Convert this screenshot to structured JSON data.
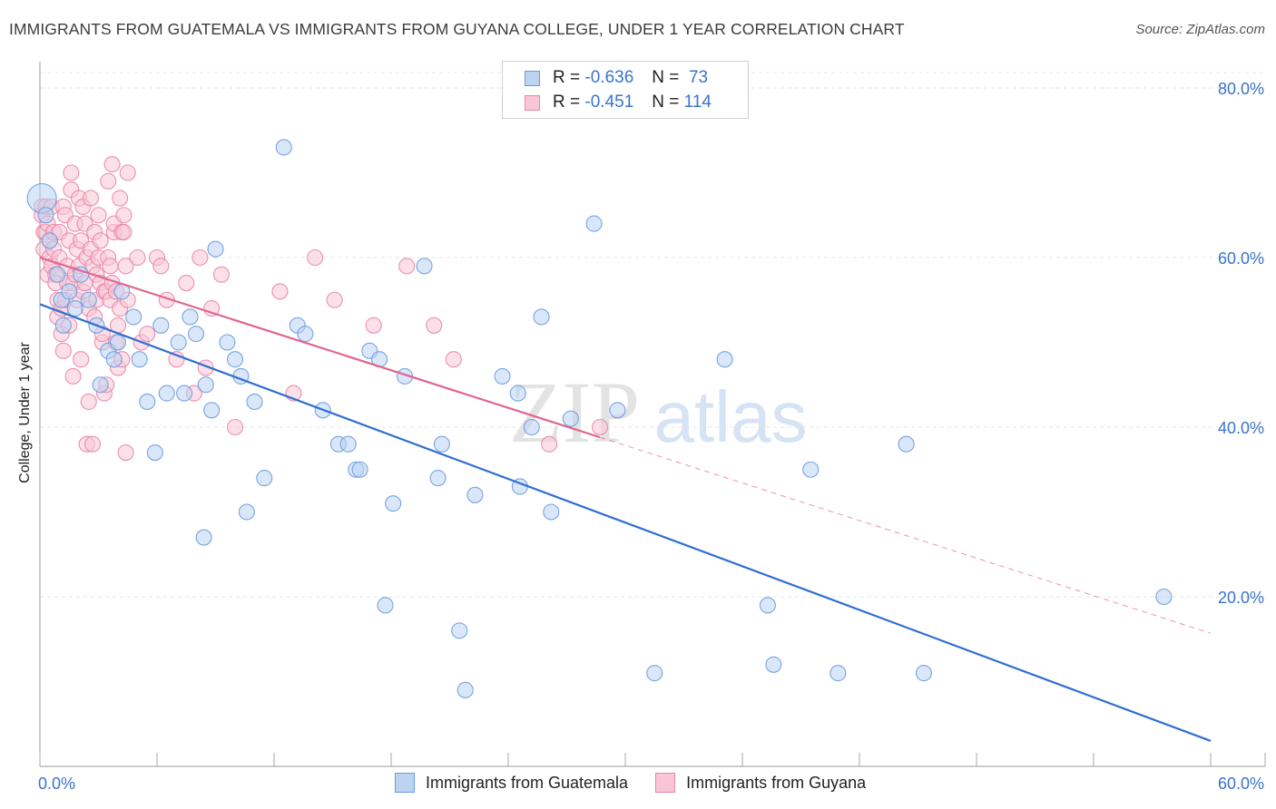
{
  "title": "IMMIGRANTS FROM GUATEMALA VS IMMIGRANTS FROM GUYANA COLLEGE, UNDER 1 YEAR CORRELATION CHART",
  "source": "Source: ZipAtlas.com",
  "watermark": {
    "left": "ZIP",
    "right": "atlas"
  },
  "legend": {
    "rows": [
      {
        "r_label": "R =",
        "r_value": "-0.636",
        "n_label": "N =",
        "n_value": "73"
      },
      {
        "r_label": "R =",
        "r_value": "-0.451",
        "n_label": "N =",
        "n_value": "114"
      }
    ]
  },
  "chart_data": {
    "type": "scatter",
    "ylabel": "College, Under 1 year",
    "xlim": [
      0,
      60
    ],
    "ylim": [
      0,
      85
    ],
    "x_tick_labels": [
      "0.0%",
      "60.0%"
    ],
    "y_ticks": [
      {
        "value": 20,
        "label": "20.0%"
      },
      {
        "value": 40,
        "label": "40.0%"
      },
      {
        "value": 60,
        "label": "60.0%"
      },
      {
        "value": 80,
        "label": "80.0%"
      }
    ],
    "grid": true,
    "legend_position": "top-center",
    "series": [
      {
        "name": "Immigrants from Guatemala",
        "color": "#6a9be0",
        "fill": "#bcd3f2",
        "r": -0.636,
        "n": 73,
        "trend": {
          "x0": 0,
          "y0": 54.5,
          "x1": 60,
          "y1": 3.0,
          "dashed_from": null
        },
        "points": [
          [
            0.1,
            67
          ],
          [
            0.5,
            62
          ],
          [
            0.9,
            58
          ],
          [
            1.1,
            55
          ],
          [
            1.2,
            52
          ],
          [
            1.5,
            56
          ],
          [
            2.1,
            58
          ],
          [
            2.5,
            55
          ],
          [
            2.9,
            52
          ],
          [
            3.1,
            45
          ],
          [
            3.5,
            49
          ],
          [
            3.8,
            48
          ],
          [
            4.0,
            50
          ],
          [
            4.2,
            56
          ],
          [
            4.8,
            53
          ],
          [
            5.1,
            48
          ],
          [
            5.5,
            43
          ],
          [
            5.9,
            37
          ],
          [
            6.2,
            52
          ],
          [
            6.5,
            44
          ],
          [
            7.1,
            50
          ],
          [
            7.4,
            44
          ],
          [
            7.7,
            53
          ],
          [
            8.0,
            51
          ],
          [
            8.4,
            27
          ],
          [
            8.5,
            45
          ],
          [
            8.8,
            42
          ],
          [
            9.0,
            61
          ],
          [
            9.6,
            50
          ],
          [
            10.0,
            48
          ],
          [
            10.3,
            46
          ],
          [
            10.6,
            30
          ],
          [
            11.0,
            43
          ],
          [
            11.5,
            34
          ],
          [
            12.5,
            73
          ],
          [
            13.2,
            52
          ],
          [
            13.6,
            51
          ],
          [
            14.5,
            42
          ],
          [
            15.3,
            38
          ],
          [
            15.8,
            38
          ],
          [
            16.2,
            35
          ],
          [
            16.4,
            35
          ],
          [
            16.9,
            49
          ],
          [
            17.4,
            48
          ],
          [
            17.7,
            19
          ],
          [
            18.1,
            31
          ],
          [
            18.7,
            46
          ],
          [
            19.7,
            59
          ],
          [
            20.4,
            34
          ],
          [
            20.6,
            38
          ],
          [
            21.5,
            16
          ],
          [
            21.8,
            9
          ],
          [
            22.3,
            32
          ],
          [
            23.7,
            46
          ],
          [
            24.5,
            44
          ],
          [
            24.6,
            33
          ],
          [
            25.2,
            40
          ],
          [
            25.7,
            53
          ],
          [
            26.2,
            30
          ],
          [
            27.2,
            41
          ],
          [
            28.4,
            64
          ],
          [
            29.6,
            42
          ],
          [
            31.5,
            11
          ],
          [
            35.1,
            48
          ],
          [
            37.3,
            19
          ],
          [
            37.6,
            12
          ],
          [
            39.5,
            35
          ],
          [
            40.9,
            11
          ],
          [
            44.4,
            38
          ],
          [
            45.3,
            11
          ],
          [
            57.6,
            20
          ],
          [
            0.3,
            65
          ],
          [
            1.8,
            54
          ]
        ]
      },
      {
        "name": "Immigrants from Guyana",
        "color": "#e985a8",
        "fill": "#f8c6d6",
        "r": -0.451,
        "n": 114,
        "trend": {
          "x0": 0,
          "y0": 60.0,
          "x1": 60,
          "y1": 15.7,
          "dashed_from": 28.7
        },
        "points": [
          [
            0.1,
            66
          ],
          [
            0.1,
            65
          ],
          [
            0.2,
            63
          ],
          [
            0.2,
            61
          ],
          [
            0.3,
            66
          ],
          [
            0.3,
            63
          ],
          [
            0.4,
            64
          ],
          [
            0.4,
            58
          ],
          [
            0.5,
            62
          ],
          [
            0.5,
            60
          ],
          [
            0.6,
            66
          ],
          [
            0.6,
            59
          ],
          [
            0.7,
            63
          ],
          [
            0.7,
            61
          ],
          [
            0.8,
            58
          ],
          [
            0.8,
            57
          ],
          [
            0.9,
            55
          ],
          [
            0.9,
            53
          ],
          [
            1.0,
            63
          ],
          [
            1.0,
            60
          ],
          [
            1.1,
            51
          ],
          [
            1.1,
            54
          ],
          [
            1.2,
            49
          ],
          [
            1.2,
            66
          ],
          [
            1.3,
            55
          ],
          [
            1.3,
            65
          ],
          [
            1.4,
            59
          ],
          [
            1.4,
            57
          ],
          [
            1.5,
            62
          ],
          [
            1.5,
            52
          ],
          [
            1.6,
            68
          ],
          [
            1.6,
            70
          ],
          [
            1.7,
            57
          ],
          [
            1.7,
            46
          ],
          [
            1.8,
            64
          ],
          [
            1.8,
            58
          ],
          [
            1.9,
            61
          ],
          [
            1.9,
            55
          ],
          [
            2.0,
            59
          ],
          [
            2.0,
            67
          ],
          [
            2.1,
            62
          ],
          [
            2.1,
            48
          ],
          [
            2.2,
            66
          ],
          [
            2.2,
            56
          ],
          [
            2.3,
            57
          ],
          [
            2.3,
            64
          ],
          [
            2.4,
            60
          ],
          [
            2.4,
            38
          ],
          [
            2.5,
            43
          ],
          [
            2.5,
            54
          ],
          [
            2.6,
            67
          ],
          [
            2.6,
            61
          ],
          [
            2.7,
            59
          ],
          [
            2.7,
            38
          ],
          [
            2.8,
            63
          ],
          [
            2.8,
            53
          ],
          [
            2.9,
            58
          ],
          [
            2.9,
            55
          ],
          [
            3.0,
            60
          ],
          [
            3.0,
            65
          ],
          [
            3.1,
            62
          ],
          [
            3.1,
            57
          ],
          [
            3.2,
            50
          ],
          [
            3.2,
            51
          ],
          [
            3.3,
            56
          ],
          [
            3.3,
            44
          ],
          [
            3.4,
            56
          ],
          [
            3.4,
            45
          ],
          [
            3.5,
            60
          ],
          [
            3.5,
            69
          ],
          [
            3.6,
            59
          ],
          [
            3.6,
            55
          ],
          [
            3.7,
            71
          ],
          [
            3.7,
            57
          ],
          [
            3.8,
            63
          ],
          [
            3.8,
            64
          ],
          [
            3.9,
            56
          ],
          [
            3.9,
            50
          ],
          [
            4.0,
            47
          ],
          [
            4.0,
            52
          ],
          [
            4.1,
            67
          ],
          [
            4.1,
            54
          ],
          [
            4.2,
            48
          ],
          [
            4.2,
            63
          ],
          [
            4.3,
            63
          ],
          [
            4.3,
            65
          ],
          [
            4.4,
            59
          ],
          [
            4.4,
            37
          ],
          [
            4.5,
            70
          ],
          [
            4.5,
            55
          ],
          [
            5.0,
            60
          ],
          [
            5.2,
            50
          ],
          [
            5.5,
            51
          ],
          [
            6.0,
            60
          ],
          [
            6.2,
            59
          ],
          [
            6.5,
            55
          ],
          [
            7.0,
            48
          ],
          [
            7.5,
            57
          ],
          [
            7.9,
            44
          ],
          [
            8.2,
            60
          ],
          [
            8.5,
            47
          ],
          [
            8.8,
            54
          ],
          [
            9.3,
            58
          ],
          [
            10.0,
            40
          ],
          [
            12.3,
            56
          ],
          [
            13.0,
            44
          ],
          [
            14.1,
            60
          ],
          [
            15.1,
            55
          ],
          [
            17.1,
            52
          ],
          [
            18.8,
            59
          ],
          [
            20.2,
            52
          ],
          [
            21.2,
            48
          ],
          [
            26.1,
            38
          ],
          [
            28.7,
            40
          ]
        ]
      }
    ]
  }
}
